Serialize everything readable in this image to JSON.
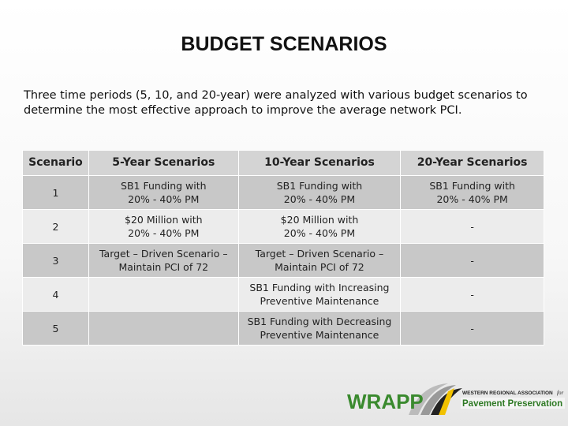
{
  "header": {
    "title": "BUDGET SCENARIOS",
    "intro": "Three time periods (5, 10, and 20-year) were analyzed with various budget scenarios to determine the most effective approach to improve the average network PCI."
  },
  "table": {
    "columns": [
      "Scenario",
      "5-Year Scenarios",
      "10-Year Scenarios",
      "20-Year Scenarios"
    ],
    "rows": [
      [
        "1",
        "SB1 Funding with\n20% - 40% PM",
        "SB1 Funding with\n20% - 40% PM",
        "SB1 Funding with\n20% - 40% PM"
      ],
      [
        "2",
        "$20 Million with\n20% - 40% PM",
        "$20 Million with\n20% - 40% PM",
        "-"
      ],
      [
        "3",
        "Target – Driven Scenario –\nMaintain PCI of 72",
        "Target – Driven Scenario –\nMaintain PCI of 72",
        "-"
      ],
      [
        "4",
        null,
        "SB1 Funding with Increasing\nPreventive Maintenance",
        "-"
      ],
      [
        "5",
        null,
        "SB1 Funding with Decreasing\nPreventive Maintenance",
        "-"
      ]
    ]
  },
  "logo": {
    "name": "WRAPP",
    "org": "WESTERN REGIONAL ASSOCIATION",
    "for": "for",
    "subtitle": "Pavement Preservation"
  }
}
